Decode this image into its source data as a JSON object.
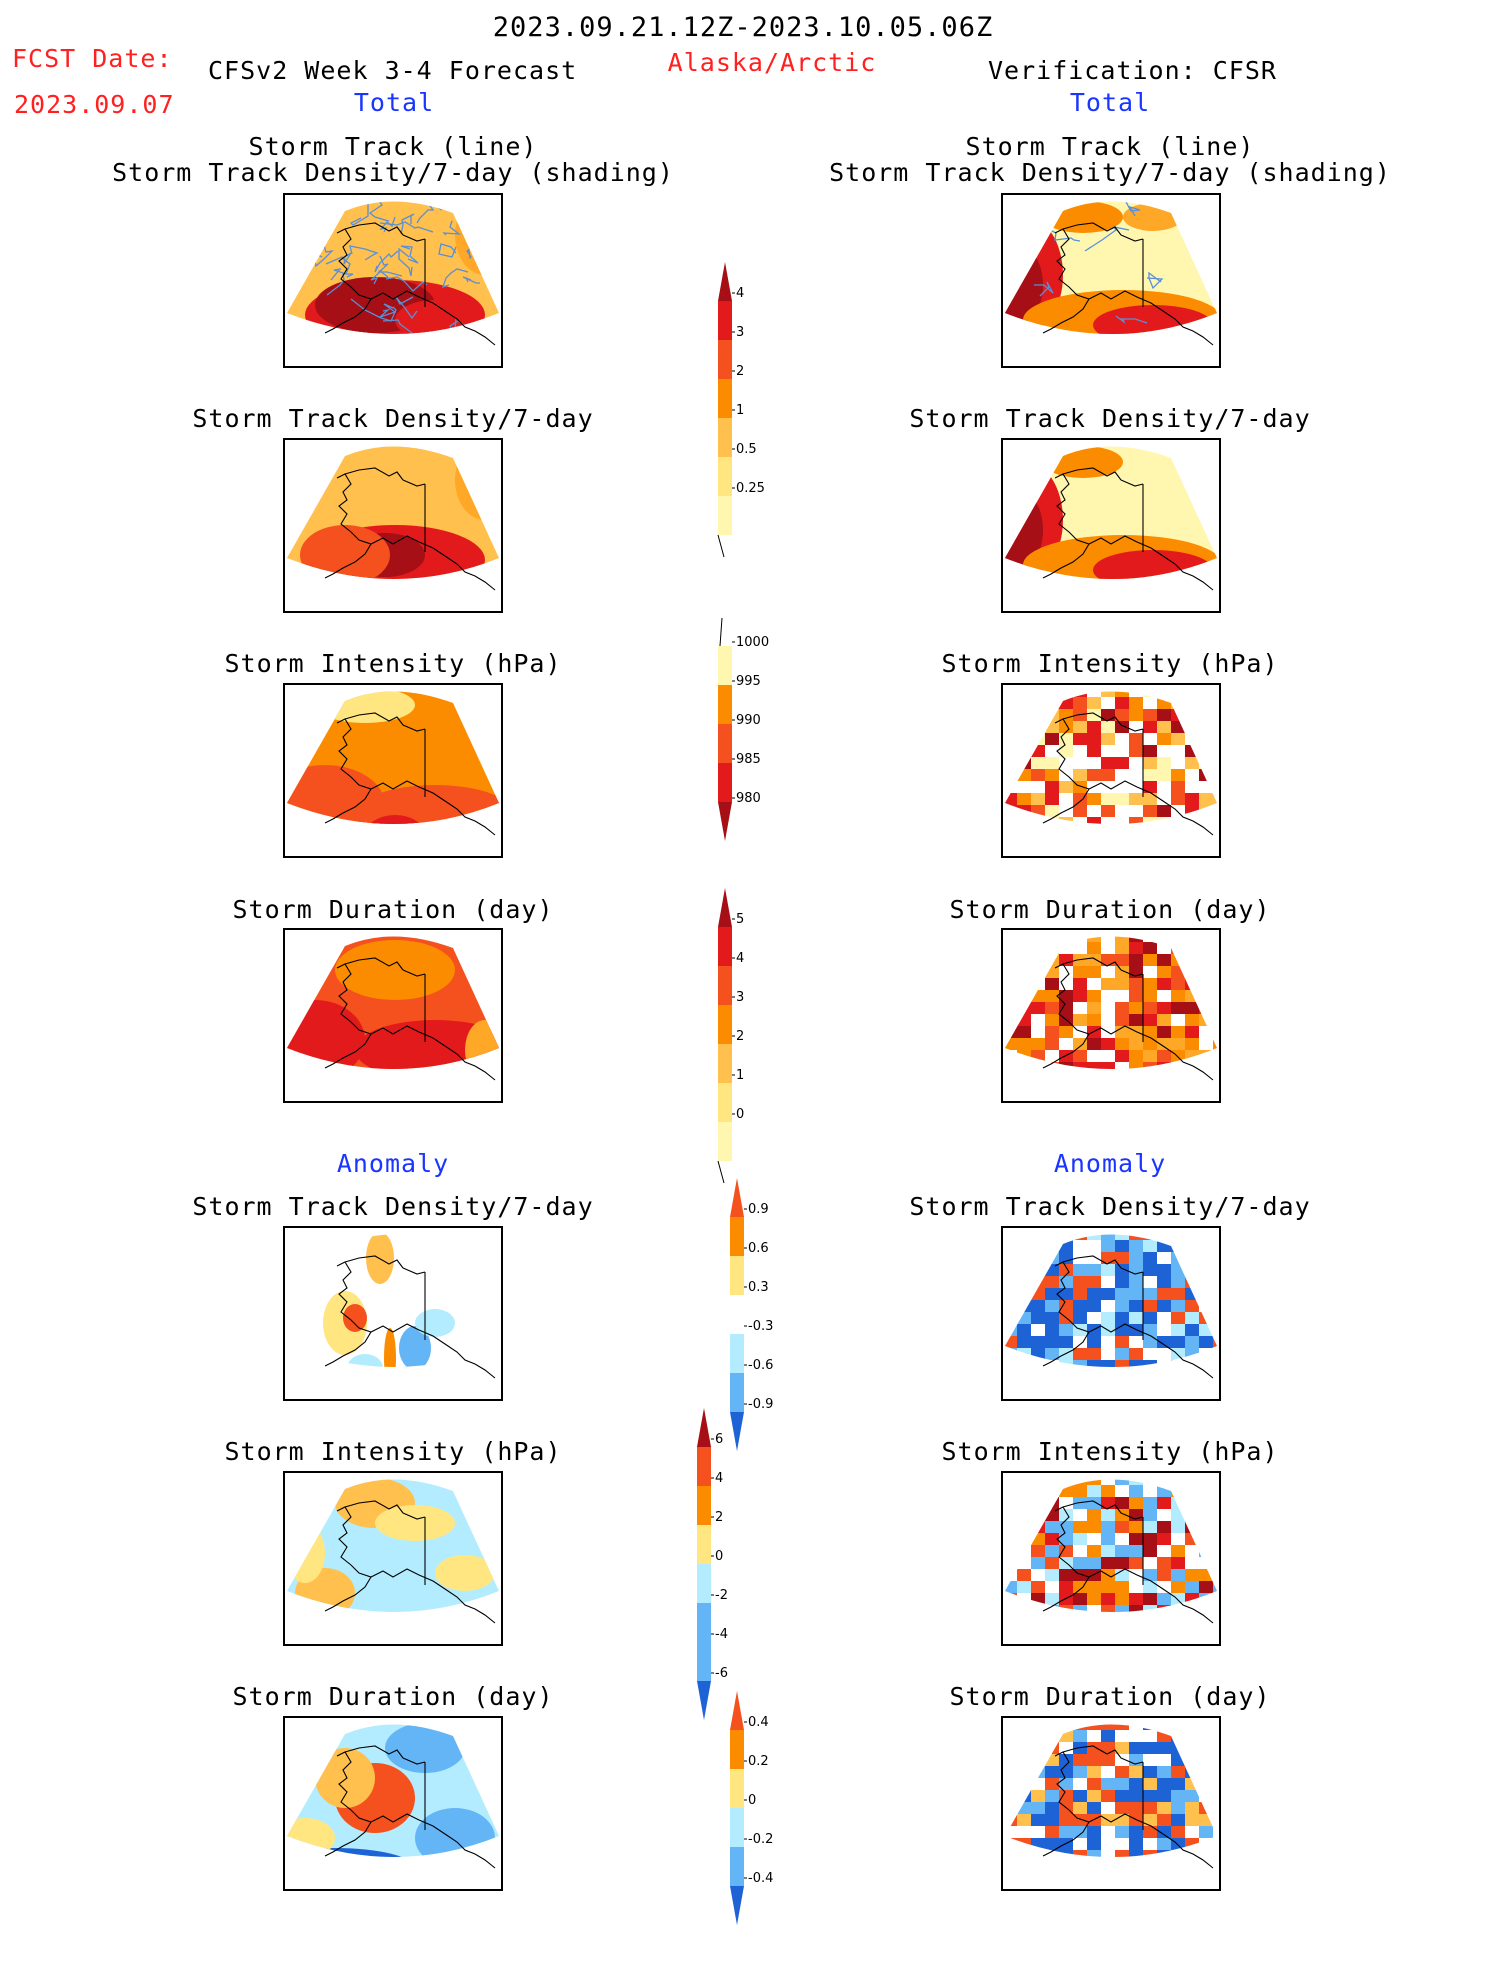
{
  "header": {
    "period": "2023.09.21.12Z-2023.10.05.06Z",
    "fcst_label": "FCST Date:",
    "fcst_date": "2023.09.07",
    "forecast_title": "CFSv2 Week 3-4 Forecast",
    "region": "Alaska/Arctic",
    "verification": "Verification: CFSR",
    "total_left": "Total",
    "total_right": "Total"
  },
  "sections": {
    "anomaly_left": "Anomaly",
    "anomaly_right": "Anomaly"
  },
  "panel_titles": {
    "track_line": "Storm Track (line)",
    "track_shading": "Storm Track Density/7-day (shading)",
    "density": "Storm Track Density/7-day",
    "intensity": "Storm Intensity (hPa)",
    "duration": "Storm Duration (day)"
  },
  "colorbars": {
    "density": [
      "4",
      "3",
      "2",
      "1",
      "0.5",
      "0.25"
    ],
    "intensity": [
      "1000",
      "995",
      "990",
      "985",
      "980"
    ],
    "duration": [
      "5",
      "4",
      "3",
      "2",
      "1",
      "0"
    ],
    "density_anom": [
      "0.9",
      "0.6",
      "0.3",
      "-0.3",
      "-0.6",
      "-0.9"
    ],
    "intensity_anom": [
      "6",
      "4",
      "2",
      "0",
      "-2",
      "-4",
      "-6"
    ],
    "duration_anom": [
      "0.4",
      "0.2",
      "0",
      "-0.2",
      "-0.4"
    ]
  },
  "colors": {
    "dark_red": "#a50f15",
    "red": "#e31a1c",
    "orange_red": "#f4511e",
    "orange": "#fb8c00",
    "amber": "#ffa726",
    "light_orange": "#ffc04d",
    "yellow": "#ffe680",
    "pale_yellow": "#fff7b0",
    "light_blue": "#b3ecff",
    "mid_blue": "#64b5f6",
    "blue": "#1e63d6",
    "track_line": "#5b8fd6"
  }
}
